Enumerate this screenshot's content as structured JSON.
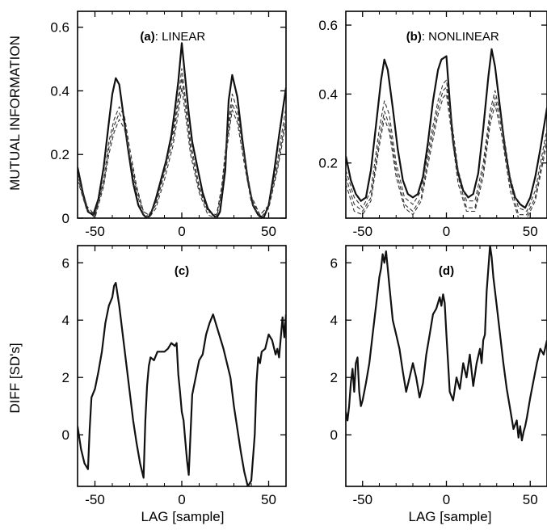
{
  "figure": {
    "ylabel_top": "MUTUAL INFORMATION",
    "ylabel_bottom": "DIFF [SD's]",
    "xlabel": "LAG [sample]"
  },
  "chart_data": [
    {
      "id": "a",
      "type": "line",
      "tag": "(a)",
      "title_text": ": LINEAR",
      "xlim": [
        -60,
        60
      ],
      "ylim": [
        0,
        0.65
      ],
      "xticks": [
        -50,
        0,
        50
      ],
      "yticks": [
        0,
        0.2,
        0.4,
        0.6
      ],
      "yticklabels": [
        "0",
        "0.2",
        "0.4",
        "0.6"
      ],
      "series": [
        {
          "style": "solid",
          "x": [
            -60,
            -57,
            -54,
            -51,
            -48,
            -45,
            -42,
            -40,
            -38,
            -36,
            -34,
            -31,
            -28,
            -25,
            -22,
            -20,
            -18,
            -15,
            -12,
            -9,
            -6,
            -4,
            -2,
            0,
            2,
            4,
            6,
            9,
            12,
            15,
            18,
            20,
            22,
            25,
            27,
            29,
            32,
            35,
            38,
            41,
            44,
            47,
            50,
            53,
            56,
            60
          ],
          "y": [
            0.16,
            0.08,
            0.02,
            0.01,
            0.06,
            0.16,
            0.3,
            0.39,
            0.44,
            0.42,
            0.34,
            0.22,
            0.11,
            0.04,
            0.01,
            0.0,
            0.01,
            0.06,
            0.12,
            0.18,
            0.26,
            0.34,
            0.43,
            0.55,
            0.44,
            0.33,
            0.24,
            0.16,
            0.08,
            0.03,
            0.01,
            0.0,
            0.02,
            0.15,
            0.37,
            0.45,
            0.38,
            0.24,
            0.12,
            0.04,
            0.01,
            0.0,
            0.04,
            0.14,
            0.26,
            0.41
          ]
        },
        {
          "style": "dashed",
          "x": [
            -60,
            -55,
            -50,
            -45,
            -42,
            -39,
            -36,
            -33,
            -30,
            -26,
            -22,
            -19,
            -15,
            -10,
            -5,
            -2,
            0,
            2,
            5,
            10,
            15,
            20,
            23,
            26,
            29,
            32,
            36,
            40,
            45,
            50,
            55,
            60
          ],
          "y": [
            0.14,
            0.04,
            0.01,
            0.12,
            0.24,
            0.31,
            0.35,
            0.32,
            0.22,
            0.1,
            0.02,
            0.01,
            0.05,
            0.15,
            0.27,
            0.38,
            0.47,
            0.38,
            0.24,
            0.1,
            0.02,
            0.01,
            0.1,
            0.26,
            0.39,
            0.34,
            0.2,
            0.07,
            0.01,
            0.04,
            0.18,
            0.35
          ]
        },
        {
          "style": "dashed",
          "x": [
            -60,
            -55,
            -50,
            -45,
            -42,
            -39,
            -36,
            -33,
            -30,
            -26,
            -22,
            -19,
            -15,
            -10,
            -5,
            -2,
            0,
            2,
            5,
            10,
            15,
            20,
            23,
            26,
            29,
            32,
            36,
            40,
            45,
            50,
            55,
            60
          ],
          "y": [
            0.13,
            0.03,
            0.01,
            0.11,
            0.22,
            0.29,
            0.33,
            0.3,
            0.2,
            0.09,
            0.02,
            0.01,
            0.04,
            0.14,
            0.25,
            0.36,
            0.44,
            0.36,
            0.22,
            0.09,
            0.02,
            0.01,
            0.09,
            0.24,
            0.36,
            0.32,
            0.19,
            0.06,
            0.01,
            0.04,
            0.16,
            0.32
          ]
        },
        {
          "style": "dashed",
          "x": [
            -60,
            -55,
            -50,
            -45,
            -42,
            -39,
            -36,
            -33,
            -30,
            -26,
            -22,
            -19,
            -15,
            -10,
            -5,
            -2,
            0,
            2,
            5,
            10,
            15,
            20,
            23,
            26,
            29,
            32,
            36,
            40,
            45,
            50,
            55,
            60
          ],
          "y": [
            0.12,
            0.03,
            0.0,
            0.1,
            0.2,
            0.27,
            0.31,
            0.28,
            0.19,
            0.08,
            0.01,
            0.0,
            0.03,
            0.12,
            0.23,
            0.33,
            0.41,
            0.33,
            0.2,
            0.08,
            0.01,
            0.0,
            0.08,
            0.22,
            0.34,
            0.3,
            0.17,
            0.05,
            0.0,
            0.03,
            0.15,
            0.3
          ]
        }
      ]
    },
    {
      "id": "b",
      "type": "line",
      "tag": "(b)",
      "title_text": ": NONLINEAR",
      "xlim": [
        -60,
        60
      ],
      "ylim": [
        0.04,
        0.64
      ],
      "xticks": [
        -50,
        0,
        50
      ],
      "yticks": [
        0.2,
        0.4,
        0.6
      ],
      "yticklabels": [
        "0.2",
        "0.4",
        "0.6"
      ],
      "series": [
        {
          "style": "solid",
          "x": [
            -60,
            -57,
            -54,
            -51,
            -48,
            -45,
            -42,
            -39,
            -37,
            -35,
            -32,
            -29,
            -26,
            -23,
            -20,
            -17,
            -14,
            -11,
            -8,
            -5,
            -3,
            0,
            2,
            4,
            7,
            10,
            13,
            16,
            19,
            22,
            25,
            27,
            29,
            32,
            35,
            38,
            41,
            44,
            47,
            50,
            53,
            56,
            60
          ],
          "y": [
            0.22,
            0.15,
            0.11,
            0.09,
            0.1,
            0.18,
            0.31,
            0.44,
            0.5,
            0.47,
            0.36,
            0.24,
            0.15,
            0.11,
            0.1,
            0.11,
            0.16,
            0.26,
            0.38,
            0.47,
            0.5,
            0.51,
            0.38,
            0.26,
            0.17,
            0.12,
            0.1,
            0.11,
            0.17,
            0.3,
            0.45,
            0.53,
            0.48,
            0.36,
            0.24,
            0.15,
            0.1,
            0.08,
            0.07,
            0.1,
            0.16,
            0.24,
            0.36
          ]
        },
        {
          "style": "dashed",
          "x": [
            -60,
            -55,
            -50,
            -45,
            -40,
            -37,
            -34,
            -30,
            -25,
            -20,
            -15,
            -10,
            -5,
            -2,
            0,
            3,
            7,
            12,
            17,
            22,
            26,
            29,
            33,
            38,
            43,
            48,
            53,
            60
          ],
          "y": [
            0.18,
            0.1,
            0.07,
            0.12,
            0.3,
            0.38,
            0.34,
            0.2,
            0.1,
            0.08,
            0.12,
            0.26,
            0.38,
            0.43,
            0.44,
            0.33,
            0.18,
            0.09,
            0.09,
            0.2,
            0.35,
            0.41,
            0.32,
            0.16,
            0.07,
            0.06,
            0.12,
            0.3
          ]
        },
        {
          "style": "dashed",
          "x": [
            -60,
            -55,
            -50,
            -45,
            -40,
            -37,
            -34,
            -30,
            -25,
            -20,
            -15,
            -10,
            -5,
            -2,
            0,
            3,
            7,
            12,
            17,
            22,
            26,
            29,
            33,
            38,
            43,
            48,
            53,
            60
          ],
          "y": [
            0.16,
            0.08,
            0.06,
            0.1,
            0.27,
            0.35,
            0.31,
            0.18,
            0.08,
            0.06,
            0.1,
            0.24,
            0.36,
            0.41,
            0.42,
            0.31,
            0.16,
            0.07,
            0.07,
            0.18,
            0.33,
            0.39,
            0.3,
            0.14,
            0.05,
            0.05,
            0.1,
            0.28
          ]
        },
        {
          "style": "dashed",
          "x": [
            -60,
            -55,
            -50,
            -45,
            -40,
            -37,
            -34,
            -30,
            -25,
            -20,
            -15,
            -10,
            -5,
            -2,
            0,
            3,
            7,
            12,
            17,
            22,
            26,
            29,
            33,
            38,
            43,
            48,
            53,
            60
          ],
          "y": [
            0.14,
            0.06,
            0.05,
            0.09,
            0.25,
            0.33,
            0.29,
            0.16,
            0.07,
            0.05,
            0.09,
            0.22,
            0.34,
            0.39,
            0.4,
            0.29,
            0.14,
            0.06,
            0.06,
            0.16,
            0.31,
            0.37,
            0.28,
            0.12,
            0.04,
            0.04,
            0.09,
            0.26
          ]
        }
      ]
    },
    {
      "id": "c",
      "type": "line",
      "tag": "(c)",
      "title_text": "",
      "xlim": [
        -60,
        60
      ],
      "ylim": [
        -1.8,
        6.6
      ],
      "xticks": [
        -50,
        0,
        50
      ],
      "yticks": [
        0,
        2,
        4,
        6
      ],
      "yticklabels": [
        "0",
        "2",
        "4",
        "6"
      ],
      "series": [
        {
          "style": "solid",
          "x": [
            -60,
            -58,
            -56,
            -54,
            -53,
            -52,
            -50,
            -48,
            -46,
            -44,
            -42,
            -40,
            -39,
            -38,
            -36,
            -34,
            -32,
            -30,
            -28,
            -26,
            -24,
            -22,
            -21,
            -20,
            -19,
            -18,
            -16,
            -14,
            -12,
            -10,
            -8,
            -6,
            -4,
            -3,
            -2,
            -1,
            0,
            1,
            2,
            3,
            4,
            6,
            8,
            10,
            12,
            14,
            16,
            18,
            20,
            22,
            24,
            26,
            28,
            30,
            32,
            34,
            36,
            38,
            40,
            42,
            43,
            44,
            45,
            46,
            48,
            50,
            52,
            54,
            55,
            56,
            58,
            59,
            60
          ],
          "y": [
            0.3,
            -0.5,
            -1.0,
            -1.2,
            0.2,
            1.3,
            1.6,
            2.2,
            2.9,
            3.9,
            4.5,
            4.8,
            5.2,
            5.3,
            4.5,
            3.5,
            2.5,
            1.5,
            0.5,
            -0.3,
            -1.0,
            -1.5,
            0.5,
            1.7,
            2.4,
            2.7,
            2.6,
            2.9,
            2.9,
            2.9,
            3.0,
            3.2,
            3.1,
            3.2,
            2.1,
            1.5,
            0.8,
            0.5,
            -0.2,
            -0.9,
            -1.4,
            1.4,
            2.0,
            2.6,
            2.8,
            3.5,
            3.9,
            4.2,
            3.8,
            3.4,
            3.0,
            2.5,
            2.0,
            1.0,
            0.2,
            -0.6,
            -1.3,
            -1.8,
            -1.6,
            0.0,
            1.8,
            2.7,
            2.5,
            2.9,
            3.0,
            3.5,
            3.3,
            2.8,
            3.0,
            2.7,
            4.1,
            3.4,
            4.2
          ]
        }
      ]
    },
    {
      "id": "d",
      "type": "line",
      "tag": "(d)",
      "title_text": "",
      "xlim": [
        -60,
        60
      ],
      "ylim": [
        -1.8,
        6.6
      ],
      "xticks": [
        -50,
        0,
        50
      ],
      "yticks": [
        0,
        2,
        4,
        6
      ],
      "yticklabels": [
        "0",
        "2",
        "4",
        "6"
      ],
      "series": [
        {
          "style": "solid",
          "x": [
            -60,
            -59,
            -58,
            -57,
            -56,
            -55,
            -54,
            -53,
            -52,
            -51,
            -50,
            -48,
            -46,
            -44,
            -42,
            -40,
            -39,
            -38,
            -37,
            -36,
            -35,
            -34,
            -32,
            -30,
            -28,
            -26,
            -24,
            -22,
            -20,
            -18,
            -16,
            -14,
            -12,
            -10,
            -8,
            -6,
            -4,
            -3,
            -2,
            -1,
            0,
            1,
            2,
            4,
            6,
            8,
            10,
            12,
            14,
            16,
            18,
            20,
            21,
            22,
            23,
            24,
            25,
            26,
            27,
            28,
            30,
            32,
            34,
            36,
            38,
            40,
            42,
            43,
            44,
            45,
            46,
            47,
            48,
            50,
            52,
            54,
            56,
            58,
            60
          ],
          "y": [
            0.8,
            0.5,
            1.0,
            1.8,
            2.3,
            1.5,
            2.5,
            2.7,
            1.5,
            1.0,
            1.2,
            1.8,
            2.5,
            3.5,
            4.5,
            5.5,
            5.8,
            6.3,
            6.0,
            6.4,
            5.8,
            5.2,
            4.0,
            3.5,
            3.0,
            2.2,
            1.5,
            2.0,
            2.5,
            2.0,
            1.3,
            1.8,
            2.8,
            3.5,
            4.2,
            4.4,
            4.8,
            4.5,
            4.9,
            4.6,
            3.5,
            2.5,
            1.5,
            1.2,
            2.0,
            1.6,
            2.5,
            2.0,
            2.8,
            1.7,
            2.5,
            3.0,
            2.5,
            3.3,
            3.5,
            5.0,
            5.8,
            6.6,
            6.2,
            5.5,
            4.5,
            3.5,
            2.5,
            1.6,
            0.9,
            0.2,
            0.5,
            -0.1,
            0.3,
            -0.2,
            0.1,
            0.3,
            0.6,
            1.3,
            1.9,
            2.5,
            3.0,
            2.8,
            3.3
          ]
        }
      ]
    }
  ]
}
